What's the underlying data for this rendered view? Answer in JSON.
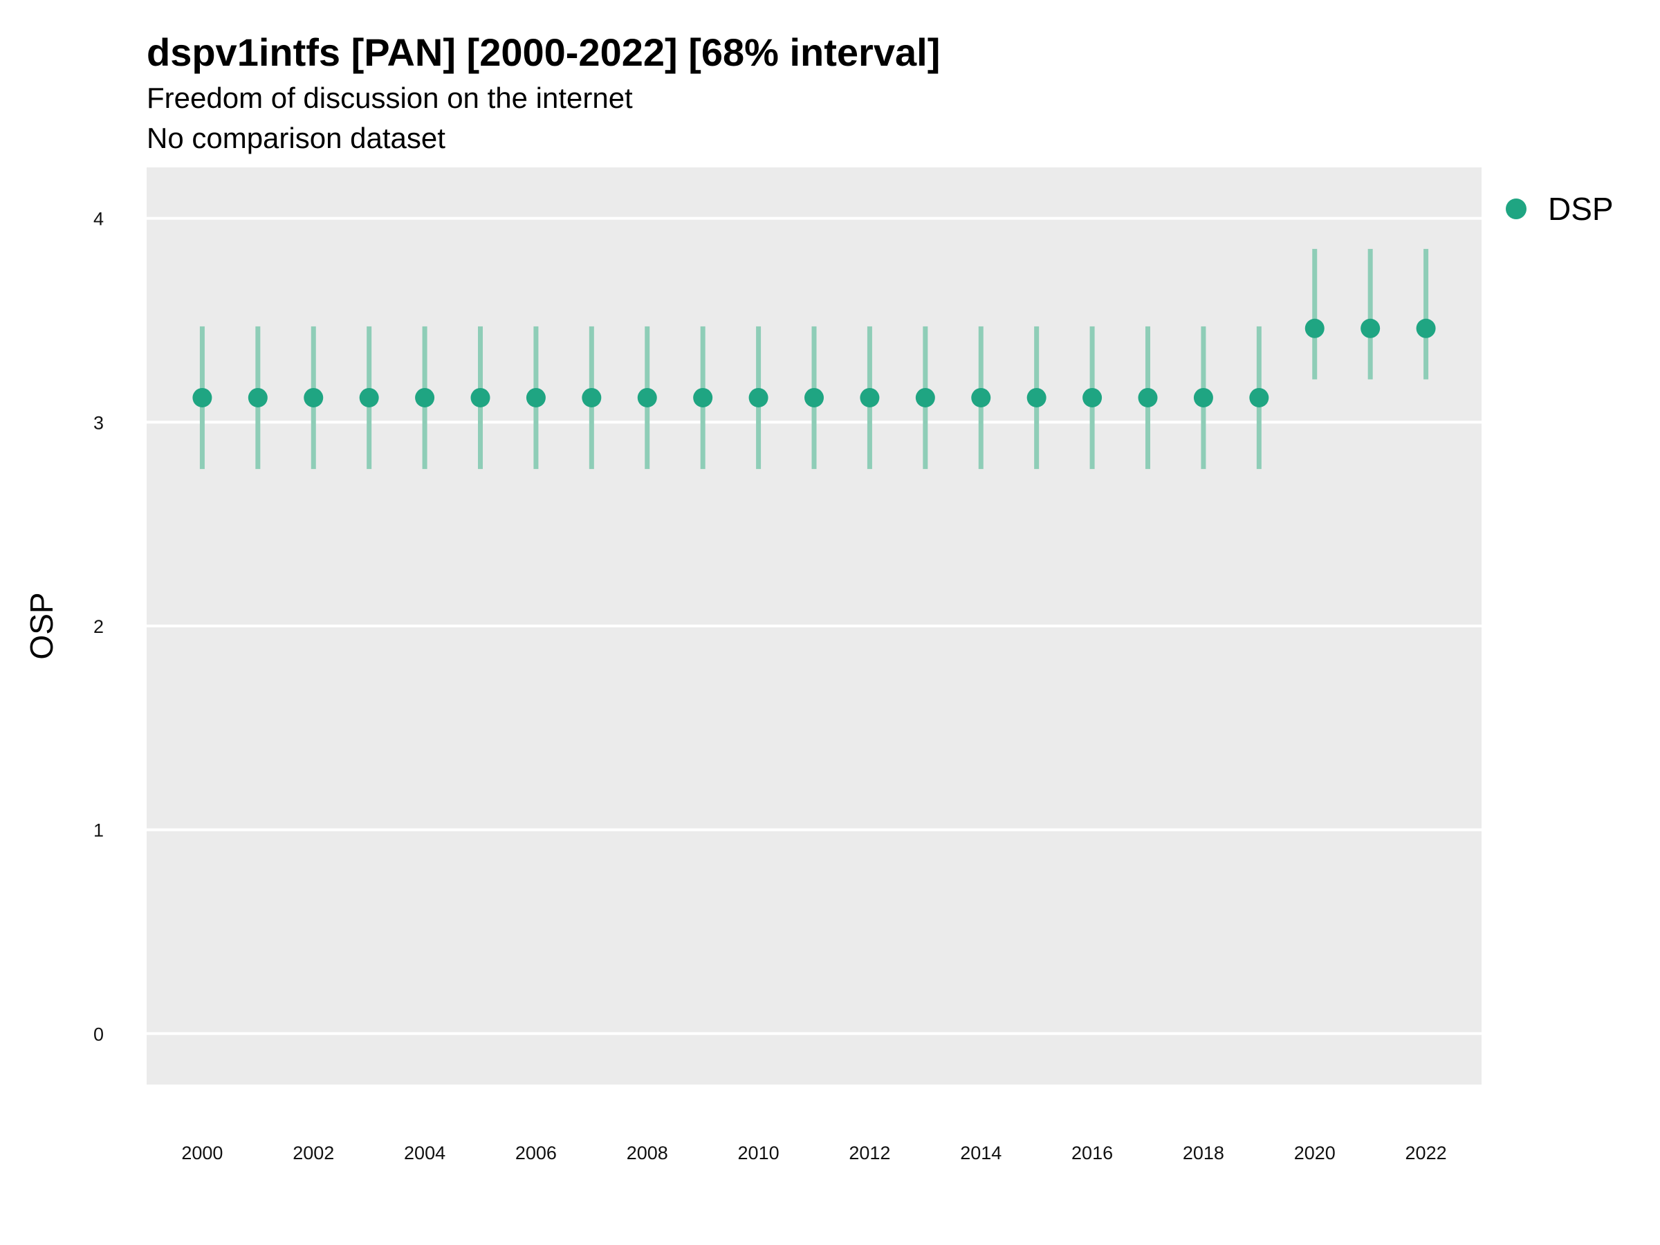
{
  "chart_data": {
    "type": "scatter",
    "title": "dspv1intfs [PAN] [2000-2022] [68% interval]",
    "subtitle": "Freedom of discussion on the internet",
    "subtitle2": "No comparison dataset",
    "xlabel": "",
    "ylabel": "OSP",
    "xlim": [
      1999,
      2023
    ],
    "ylim": [
      -0.25,
      4.25
    ],
    "x_ticks": [
      "2000",
      "2002",
      "2004",
      "2006",
      "2008",
      "2010",
      "2012",
      "2014",
      "2016",
      "2018",
      "2020",
      "2022"
    ],
    "y_ticks": [
      "0",
      "1",
      "2",
      "3",
      "4"
    ],
    "grid": true,
    "legend_position": "top-right",
    "colors": {
      "point": "#1fa582",
      "interval": "#8ecdb7",
      "panel": "#ebebeb",
      "grid": "#ffffff"
    },
    "series": [
      {
        "name": "DSP",
        "x": [
          2000,
          2001,
          2002,
          2003,
          2004,
          2005,
          2006,
          2007,
          2008,
          2009,
          2010,
          2011,
          2012,
          2013,
          2014,
          2015,
          2016,
          2017,
          2018,
          2019,
          2020,
          2021,
          2022
        ],
        "y": [
          3.12,
          3.12,
          3.12,
          3.12,
          3.12,
          3.12,
          3.12,
          3.12,
          3.12,
          3.12,
          3.12,
          3.12,
          3.12,
          3.12,
          3.12,
          3.12,
          3.12,
          3.12,
          3.12,
          3.12,
          3.46,
          3.46,
          3.46
        ],
        "lower": [
          2.77,
          2.77,
          2.77,
          2.77,
          2.77,
          2.77,
          2.77,
          2.77,
          2.77,
          2.77,
          2.77,
          2.77,
          2.77,
          2.77,
          2.77,
          2.77,
          2.77,
          2.77,
          2.77,
          2.77,
          3.21,
          3.21,
          3.21
        ],
        "upper": [
          3.47,
          3.47,
          3.47,
          3.47,
          3.47,
          3.47,
          3.47,
          3.47,
          3.47,
          3.47,
          3.47,
          3.47,
          3.47,
          3.47,
          3.47,
          3.47,
          3.47,
          3.47,
          3.47,
          3.47,
          3.85,
          3.85,
          3.85
        ]
      }
    ]
  }
}
